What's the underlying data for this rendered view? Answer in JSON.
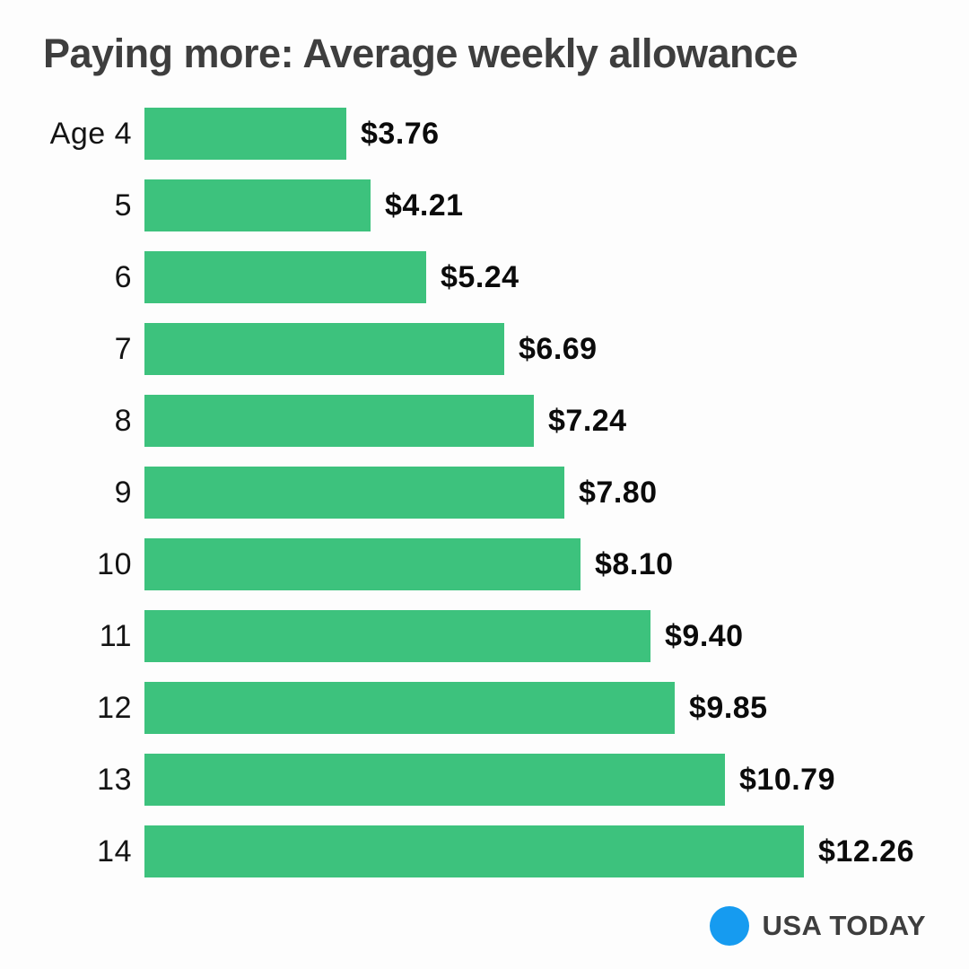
{
  "title": "Paying more: Average weekly allowance",
  "colors": {
    "background": "#fdfdfd",
    "bar": "#3dc27d",
    "title_text": "#3e3e3e",
    "value_text": "#0b0b0b",
    "logo_blue": "#169bf0"
  },
  "logo": {
    "icon": "blue-circle-icon",
    "text": "USA TODAY"
  },
  "chart_data": {
    "type": "bar",
    "orientation": "horizontal",
    "title": "Paying more: Average weekly allowance",
    "categories": [
      "Age 4",
      "5",
      "6",
      "7",
      "8",
      "9",
      "10",
      "11",
      "12",
      "13",
      "14"
    ],
    "values": [
      3.76,
      4.21,
      5.24,
      6.69,
      7.24,
      7.8,
      8.1,
      9.4,
      9.85,
      10.79,
      12.26
    ],
    "value_labels": [
      "$3.76",
      "$4.21",
      "$5.24",
      "$6.69",
      "$7.24",
      "$7.80",
      "$8.10",
      "$9.40",
      "$9.85",
      "$10.79",
      "$12.26"
    ],
    "xlabel": "",
    "ylabel": "",
    "xlim": [
      0,
      12.26
    ],
    "grid": false,
    "legend": false,
    "axis_lines": "none",
    "value_label_position": "right-of-bar"
  }
}
